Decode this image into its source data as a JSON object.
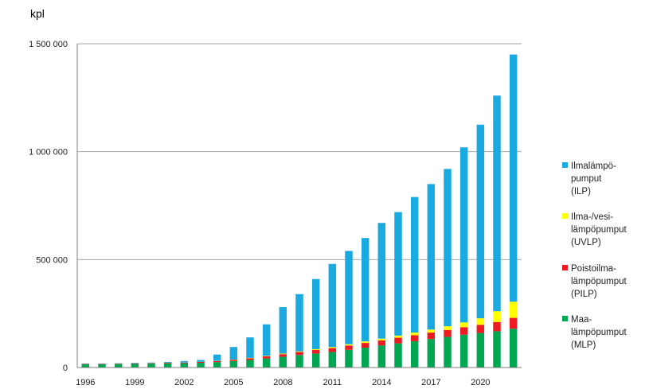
{
  "chart_data": {
    "type": "bar",
    "stacked": true,
    "ylabel": "kpl",
    "ylim": [
      0,
      1500000
    ],
    "y_ticks": [
      0,
      500000,
      1000000,
      1500000
    ],
    "y_tick_labels": [
      "0",
      "500 000",
      "1 000 000",
      "1 500 000"
    ],
    "x_tick_labels": [
      "1996",
      "1999",
      "2002",
      "2005",
      "2008",
      "2011",
      "2014",
      "2017",
      "2020"
    ],
    "grid": "horizontal",
    "legend_position": "right",
    "categories": [
      1996,
      1997,
      1998,
      1999,
      2000,
      2001,
      2002,
      2003,
      2004,
      2005,
      2006,
      2007,
      2008,
      2009,
      2010,
      2011,
      2012,
      2013,
      2014,
      2015,
      2016,
      2017,
      2018,
      2019,
      2020,
      2021,
      2022
    ],
    "series": [
      {
        "name": "Maa-lämpöpumput (MLP)",
        "legend_lines": [
          "Maa-",
          "lämpöpumput",
          "(MLP)"
        ],
        "color": "#00a651",
        "values": [
          15000,
          15000,
          16000,
          17000,
          18000,
          19000,
          20000,
          22000,
          25000,
          30000,
          35000,
          42000,
          50000,
          58000,
          65000,
          72000,
          82000,
          92000,
          102000,
          112000,
          122000,
          132000,
          142000,
          152000,
          160000,
          168000,
          180000
        ]
      },
      {
        "name": "Poistoilma-lämpöpumput (PILP)",
        "legend_lines": [
          "Poistoilma-",
          "lämpöpumput",
          "(PILP)"
        ],
        "color": "#ed1c24",
        "values": [
          2000,
          2000,
          2000,
          2000,
          2000,
          3000,
          3000,
          4000,
          5000,
          6000,
          8000,
          10000,
          12000,
          14000,
          16000,
          18000,
          20000,
          22000,
          24000,
          26000,
          28000,
          30000,
          32000,
          35000,
          38000,
          43000,
          50000
        ]
      },
      {
        "name": "Ilma-/vesi-lämpöpumput (UVLP)",
        "legend_lines": [
          "Ilma-/vesi-",
          "lämpöpumput",
          "(UVLP)"
        ],
        "color": "#ffff00",
        "values": [
          500,
          500,
          500,
          500,
          500,
          500,
          500,
          500,
          1000,
          1000,
          1500,
          2000,
          2500,
          3000,
          4000,
          5000,
          6000,
          7000,
          8000,
          10000,
          12000,
          14000,
          17000,
          22000,
          30000,
          50000,
          75000
        ]
      },
      {
        "name": "Ilmalämpö-pumput (ILP)",
        "legend_lines": [
          "Ilmalämpö-",
          "pumput",
          "(ILP)"
        ],
        "color": "#1ba9e1",
        "values": [
          1500,
          1500,
          1500,
          2500,
          2500,
          3500,
          6500,
          8500,
          29000,
          58000,
          95000,
          146000,
          215500,
          265000,
          325000,
          385000,
          432000,
          479000,
          536000,
          572000,
          628000,
          674000,
          729000,
          811000,
          897000,
          999000,
          1145000
        ]
      }
    ]
  }
}
